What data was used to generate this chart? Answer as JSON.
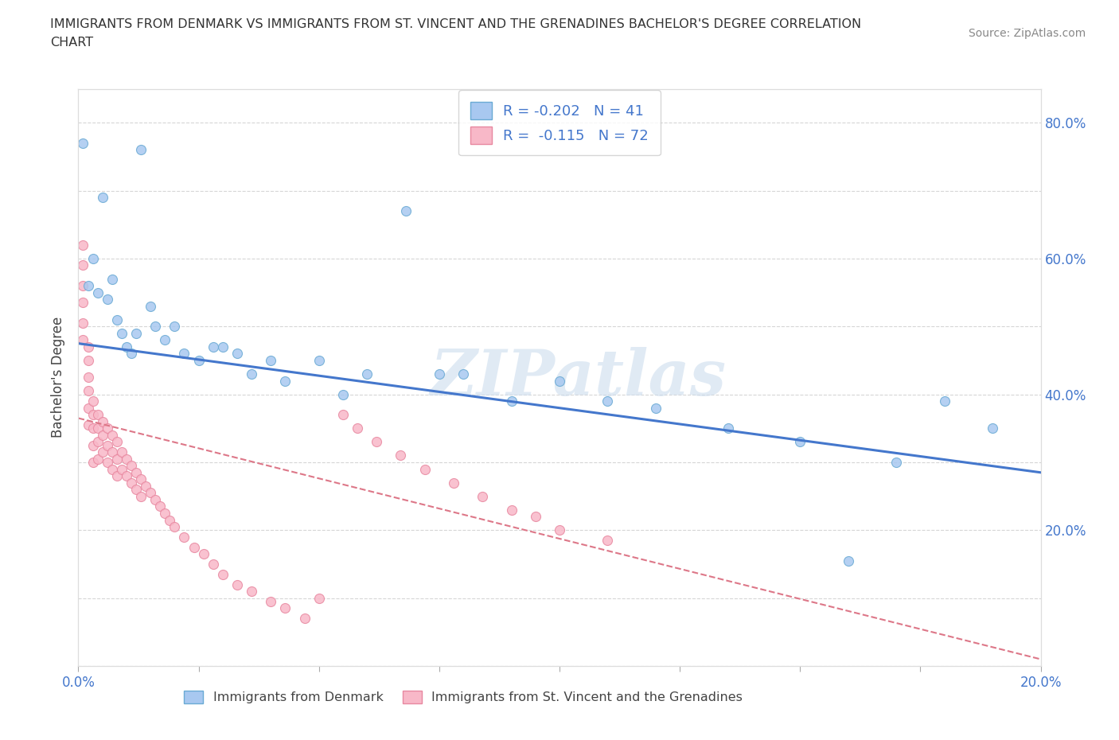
{
  "title_line1": "IMMIGRANTS FROM DENMARK VS IMMIGRANTS FROM ST. VINCENT AND THE GRENADINES BACHELOR'S DEGREE CORRELATION",
  "title_line2": "CHART",
  "source": "Source: ZipAtlas.com",
  "ylabel": "Bachelor's Degree",
  "xlim": [
    0.0,
    0.2
  ],
  "ylim": [
    0.0,
    0.85
  ],
  "x_ticks": [
    0.0,
    0.025,
    0.05,
    0.075,
    0.1,
    0.125,
    0.15,
    0.175,
    0.2
  ],
  "y_ticks": [
    0.0,
    0.1,
    0.2,
    0.3,
    0.4,
    0.5,
    0.6,
    0.7,
    0.8
  ],
  "denmark_color": "#a8c8f0",
  "denmark_edge": "#6aaad4",
  "stvincent_color": "#f8b8c8",
  "stvincent_edge": "#e888a0",
  "trend_denmark_color": "#4477cc",
  "trend_stvincent_color": "#dd7788",
  "R_denmark": -0.202,
  "N_denmark": 41,
  "R_stvincent": -0.115,
  "N_stvincent": 72,
  "watermark": "ZIPatlas",
  "trend_dk_x0": 0.0,
  "trend_dk_y0": 0.475,
  "trend_dk_x1": 0.2,
  "trend_dk_y1": 0.285,
  "trend_sv_x0": 0.0,
  "trend_sv_y0": 0.365,
  "trend_sv_x1": 0.2,
  "trend_sv_y1": 0.01,
  "denmark_x": [
    0.001,
    0.002,
    0.003,
    0.004,
    0.005,
    0.006,
    0.007,
    0.008,
    0.009,
    0.01,
    0.011,
    0.012,
    0.013,
    0.015,
    0.016,
    0.018,
    0.02,
    0.022,
    0.025,
    0.028,
    0.03,
    0.033,
    0.036,
    0.04,
    0.043,
    0.05,
    0.055,
    0.06,
    0.068,
    0.075,
    0.08,
    0.09,
    0.1,
    0.11,
    0.12,
    0.135,
    0.15,
    0.16,
    0.17,
    0.18,
    0.19
  ],
  "denmark_y": [
    0.77,
    0.56,
    0.6,
    0.55,
    0.69,
    0.54,
    0.57,
    0.51,
    0.49,
    0.47,
    0.46,
    0.49,
    0.76,
    0.53,
    0.5,
    0.48,
    0.5,
    0.46,
    0.45,
    0.47,
    0.47,
    0.46,
    0.43,
    0.45,
    0.42,
    0.45,
    0.4,
    0.43,
    0.67,
    0.43,
    0.43,
    0.39,
    0.42,
    0.39,
    0.38,
    0.35,
    0.33,
    0.155,
    0.3,
    0.39,
    0.35
  ],
  "stvincent_x": [
    0.001,
    0.001,
    0.001,
    0.001,
    0.001,
    0.001,
    0.002,
    0.002,
    0.002,
    0.002,
    0.002,
    0.002,
    0.003,
    0.003,
    0.003,
    0.003,
    0.003,
    0.004,
    0.004,
    0.004,
    0.004,
    0.005,
    0.005,
    0.005,
    0.006,
    0.006,
    0.006,
    0.007,
    0.007,
    0.007,
    0.008,
    0.008,
    0.008,
    0.009,
    0.009,
    0.01,
    0.01,
    0.011,
    0.011,
    0.012,
    0.012,
    0.013,
    0.013,
    0.014,
    0.015,
    0.016,
    0.017,
    0.018,
    0.019,
    0.02,
    0.022,
    0.024,
    0.026,
    0.028,
    0.03,
    0.033,
    0.036,
    0.04,
    0.043,
    0.047,
    0.05,
    0.055,
    0.058,
    0.062,
    0.067,
    0.072,
    0.078,
    0.084,
    0.09,
    0.095,
    0.1,
    0.11
  ],
  "stvincent_y": [
    0.62,
    0.59,
    0.56,
    0.535,
    0.505,
    0.48,
    0.47,
    0.45,
    0.425,
    0.405,
    0.38,
    0.355,
    0.39,
    0.37,
    0.35,
    0.325,
    0.3,
    0.37,
    0.35,
    0.33,
    0.305,
    0.36,
    0.34,
    0.315,
    0.35,
    0.325,
    0.3,
    0.34,
    0.315,
    0.29,
    0.33,
    0.305,
    0.28,
    0.315,
    0.29,
    0.305,
    0.28,
    0.295,
    0.27,
    0.285,
    0.26,
    0.275,
    0.25,
    0.265,
    0.255,
    0.245,
    0.235,
    0.225,
    0.215,
    0.205,
    0.19,
    0.175,
    0.165,
    0.15,
    0.135,
    0.12,
    0.11,
    0.095,
    0.085,
    0.07,
    0.1,
    0.37,
    0.35,
    0.33,
    0.31,
    0.29,
    0.27,
    0.25,
    0.23,
    0.22,
    0.2,
    0.185
  ]
}
